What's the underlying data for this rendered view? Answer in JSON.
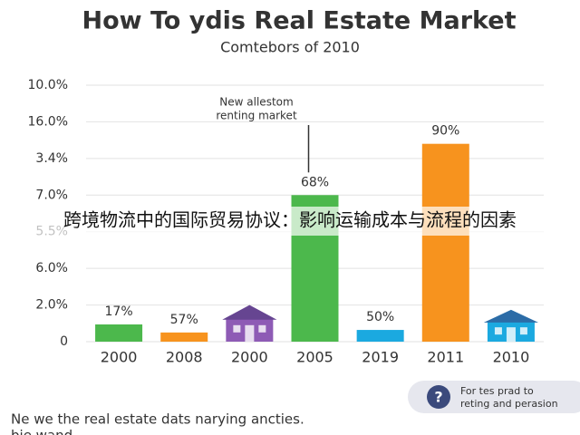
{
  "chart_data": {
    "type": "bar",
    "title": "How To ydis Real Estate Market",
    "subtitle": "Comtebors of 2010",
    "categories": [
      "2000",
      "2008",
      "2000",
      "2005",
      "2019",
      "2011",
      "2010"
    ],
    "values": [
      0.47,
      0.25,
      1.0,
      4.0,
      0.32,
      5.4,
      0.87
    ],
    "colors": [
      "#4cb84c",
      "#f7931e",
      "#8e5bb5",
      "#4cb84c",
      "#1ba9e0",
      "#f7931e",
      "#1ba9e0"
    ],
    "mark_shapes": [
      "bar",
      "bar",
      "house",
      "bar",
      "bar",
      "bar",
      "house"
    ],
    "bar_labels": [
      "17%",
      "57%",
      null,
      "68%",
      "50%",
      "90%",
      null
    ],
    "ylim": [
      0,
      7
    ],
    "yticks": [
      {
        "value": 0,
        "label": "0"
      },
      {
        "value": 1,
        "label": "2.0%"
      },
      {
        "value": 2,
        "label": "6.0%"
      },
      {
        "value": 3,
        "label": "5.5%"
      },
      {
        "value": 4,
        "label": "7.0%"
      },
      {
        "value": 5,
        "label": "3.4%"
      },
      {
        "value": 6,
        "label": "16.0%"
      },
      {
        "value": 7,
        "label": "10.0%"
      }
    ],
    "grid": true,
    "annotation": {
      "lines": [
        "New allestom",
        "renting market"
      ],
      "category_index": 3
    },
    "overlay_text": "跨境物流中的国际贸易协议：影响运输成本与流程的因素",
    "footer": [
      "Ne we the real estate dats narying ancties.",
      "bie wand"
    ],
    "help": {
      "icon": "?",
      "lines": [
        "For tes prad to",
        "reting and perasion"
      ]
    }
  }
}
